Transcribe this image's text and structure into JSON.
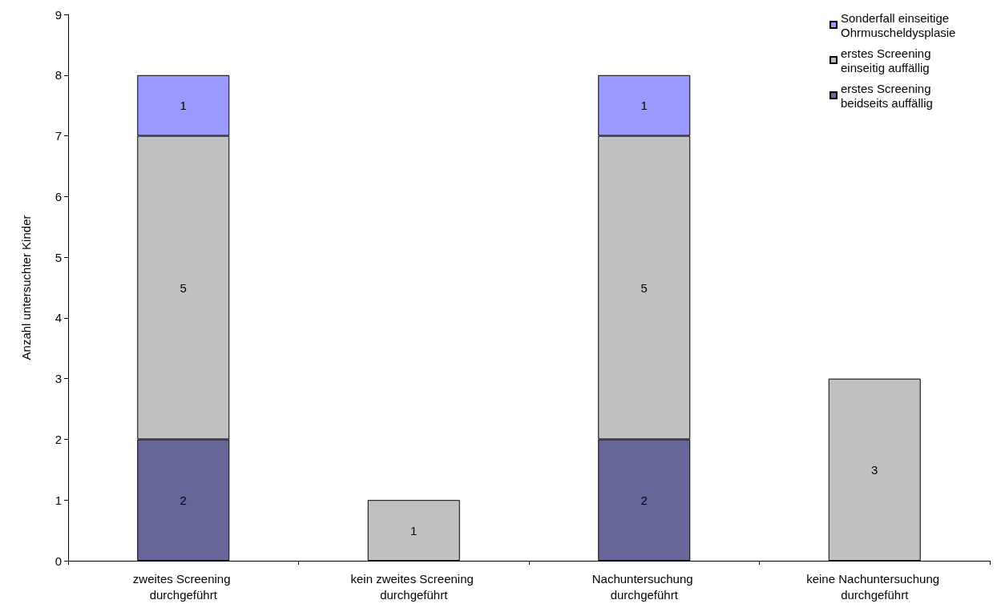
{
  "chart_data": {
    "type": "bar",
    "stacked": true,
    "ylabel": "Anzahl untersuchter Kinder",
    "categories": [
      "zweites Screening durchgeführt",
      "kein zweites Screening durchgeführt",
      "Nachuntersuchung durchgeführt",
      "keine Nachuntersuchung durchgeführt"
    ],
    "series": [
      {
        "name": "erstes Screening beidseits auffällig",
        "color": "#666699",
        "values": [
          2,
          null,
          2,
          null
        ]
      },
      {
        "name": "erstes Screening einseitig auffällig",
        "color": "#c0c0c0",
        "values": [
          5,
          1,
          5,
          3
        ]
      },
      {
        "name": "Sonderfall einseitige Ohrmuscheldysplasie",
        "color": "#9999ff",
        "values": [
          1,
          null,
          1,
          null
        ]
      }
    ],
    "ylim": [
      0,
      9
    ],
    "yticks": [
      0,
      1,
      2,
      3,
      4,
      5,
      6,
      7,
      8,
      9
    ],
    "grid": false,
    "legend": "top right",
    "data_labels": true
  }
}
